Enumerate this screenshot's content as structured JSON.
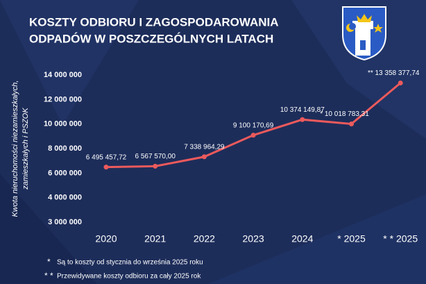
{
  "chart_data": {
    "type": "line",
    "title_lines": [
      "KOSZTY ODBIORU I ZAGOSPODAROWANIA",
      "ODPADÓW W POSZCZEGÓLNYCH LATACH"
    ],
    "y_label_lines": [
      "Kwota nieruchomości niezamieszkałych,",
      "zamieszkałych i PSZOK"
    ],
    "categories": [
      "2020",
      "2021",
      "2022",
      "2023",
      "2024",
      "* 2025",
      "* * 2025"
    ],
    "series": [
      {
        "name": "Koszty",
        "color": "#ec5a5c",
        "values": [
          6495457.72,
          6567570.0,
          7338964.29,
          9100170.69,
          10374149.87,
          10018783.31,
          13358377.74
        ],
        "value_labels": [
          "6 495 457,72",
          "6 567 570,00",
          "7 338 964,29",
          "9 100 170,69",
          "10 374 149,87",
          "* 10 018 783,31",
          "** 13 358 377,74"
        ]
      }
    ],
    "ylim": [
      3000000,
      14000000
    ],
    "yticks": [
      {
        "value": 3000000,
        "label": "3 000 000"
      },
      {
        "value": 4000000,
        "label": "4 000 000"
      },
      {
        "value": 6000000,
        "label": "6 000 000"
      },
      {
        "value": 8000000,
        "label": "8 000 000"
      },
      {
        "value": 10000000,
        "label": "10 000 000"
      },
      {
        "value": 12000000,
        "label": "12 000 000"
      },
      {
        "value": 14000000,
        "label": "14 000 000"
      }
    ],
    "footnotes": [
      {
        "mark": "*",
        "text": "Są to koszty od stycznia do września 2025 roku"
      },
      {
        "mark": "* *",
        "text": "Przewidywane koszty odbioru za cały 2025 rok"
      }
    ]
  }
}
